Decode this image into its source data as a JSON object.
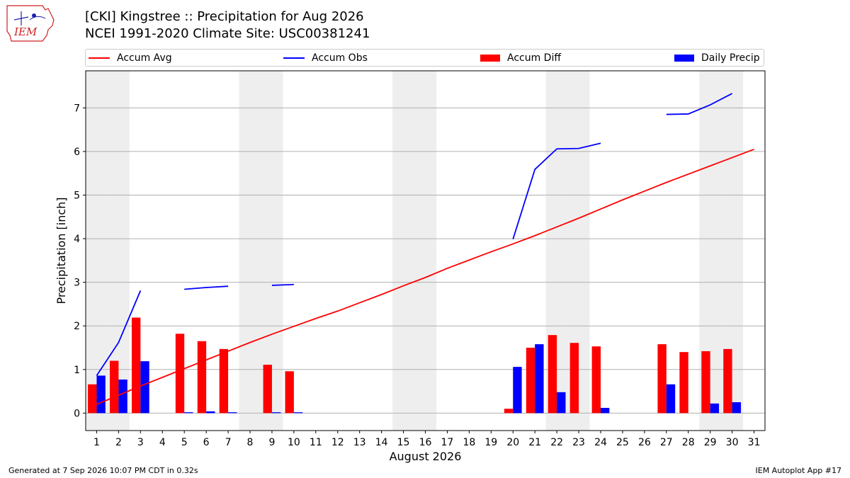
{
  "header": {
    "logo_text": "IEM",
    "title_line1": "[CKI] Kingstree :: Precipitation for Aug 2026",
    "title_line2": "NCEI 1991-2020 Climate Site: USC00381241"
  },
  "legend": {
    "accum_avg": "Accum Avg",
    "accum_obs": "Accum Obs",
    "accum_diff": "Accum Diff",
    "daily_precip": "Daily Precip"
  },
  "colors": {
    "avg": "#ff0000",
    "obs": "#0000ff",
    "diff": "#ff0000",
    "daily": "#0000ff",
    "weekend_shade": "#eeeeee",
    "grid": "#b0b0b0"
  },
  "chart_data": {
    "type": "bar",
    "xlabel": "August 2026",
    "ylabel": "Precipitation [inch]",
    "ylim": [
      -0.4,
      7.85
    ],
    "xlim": [
      0.5,
      31.5
    ],
    "yticks": [
      0,
      1,
      2,
      3,
      4,
      5,
      6,
      7
    ],
    "days": [
      1,
      2,
      3,
      4,
      5,
      6,
      7,
      8,
      9,
      10,
      11,
      12,
      13,
      14,
      15,
      16,
      17,
      18,
      19,
      20,
      21,
      22,
      23,
      24,
      25,
      26,
      27,
      28,
      29,
      30,
      31
    ],
    "shaded_days": [
      1,
      2,
      8,
      9,
      15,
      16,
      22,
      23,
      29,
      30
    ],
    "grid": "horizontal",
    "legend_position": "top",
    "accum_avg": [
      0.2,
      0.41,
      0.62,
      0.82,
      1.02,
      1.22,
      1.42,
      1.62,
      1.81,
      1.99,
      2.17,
      2.34,
      2.53,
      2.72,
      2.92,
      3.11,
      3.32,
      3.51,
      3.7,
      3.88,
      4.07,
      4.27,
      4.47,
      4.68,
      4.89,
      5.09,
      5.29,
      5.48,
      5.67,
      5.86,
      6.05
    ],
    "accum_obs_segments": [
      [
        [
          1,
          0.86
        ],
        [
          2,
          1.62
        ],
        [
          3,
          2.81
        ]
      ],
      [
        [
          5,
          2.84
        ],
        [
          6,
          2.88
        ],
        [
          7,
          2.91
        ]
      ],
      [
        [
          9,
          2.93
        ],
        [
          10,
          2.95
        ]
      ],
      [
        [
          20,
          3.99
        ],
        [
          21,
          5.59
        ],
        [
          22,
          6.06
        ],
        [
          23,
          6.07
        ],
        [
          24,
          6.19
        ]
      ],
      [
        [
          27,
          6.85
        ],
        [
          28,
          6.86
        ],
        [
          29,
          7.07
        ],
        [
          30,
          7.33
        ]
      ]
    ],
    "accum_diff": [
      {
        "day": 1,
        "value": 0.66
      },
      {
        "day": 2,
        "value": 1.2
      },
      {
        "day": 3,
        "value": 2.19
      },
      {
        "day": 5,
        "value": 1.82
      },
      {
        "day": 6,
        "value": 1.65
      },
      {
        "day": 7,
        "value": 1.47
      },
      {
        "day": 9,
        "value": 1.11
      },
      {
        "day": 10,
        "value": 0.96
      },
      {
        "day": 20,
        "value": 0.1
      },
      {
        "day": 21,
        "value": 1.5
      },
      {
        "day": 22,
        "value": 1.79
      },
      {
        "day": 23,
        "value": 1.61
      },
      {
        "day": 24,
        "value": 1.53
      },
      {
        "day": 27,
        "value": 1.58
      },
      {
        "day": 28,
        "value": 1.4
      },
      {
        "day": 29,
        "value": 1.42
      },
      {
        "day": 30,
        "value": 1.47
      }
    ],
    "daily_precip": [
      {
        "day": 1,
        "value": 0.86
      },
      {
        "day": 2,
        "value": 0.77
      },
      {
        "day": 3,
        "value": 1.19
      },
      {
        "day": 5,
        "value": 0.02
      },
      {
        "day": 6,
        "value": 0.04
      },
      {
        "day": 7,
        "value": 0.02
      },
      {
        "day": 9,
        "value": 0.02
      },
      {
        "day": 10,
        "value": 0.02
      },
      {
        "day": 20,
        "value": 1.06
      },
      {
        "day": 21,
        "value": 1.58
      },
      {
        "day": 22,
        "value": 0.48
      },
      {
        "day": 24,
        "value": 0.12
      },
      {
        "day": 27,
        "value": 0.66
      },
      {
        "day": 29,
        "value": 0.22
      },
      {
        "day": 30,
        "value": 0.25
      }
    ]
  },
  "footer": {
    "left": "Generated at 7 Sep 2026 10:07 PM CDT in 0.32s",
    "right": "IEM Autoplot App #17"
  }
}
